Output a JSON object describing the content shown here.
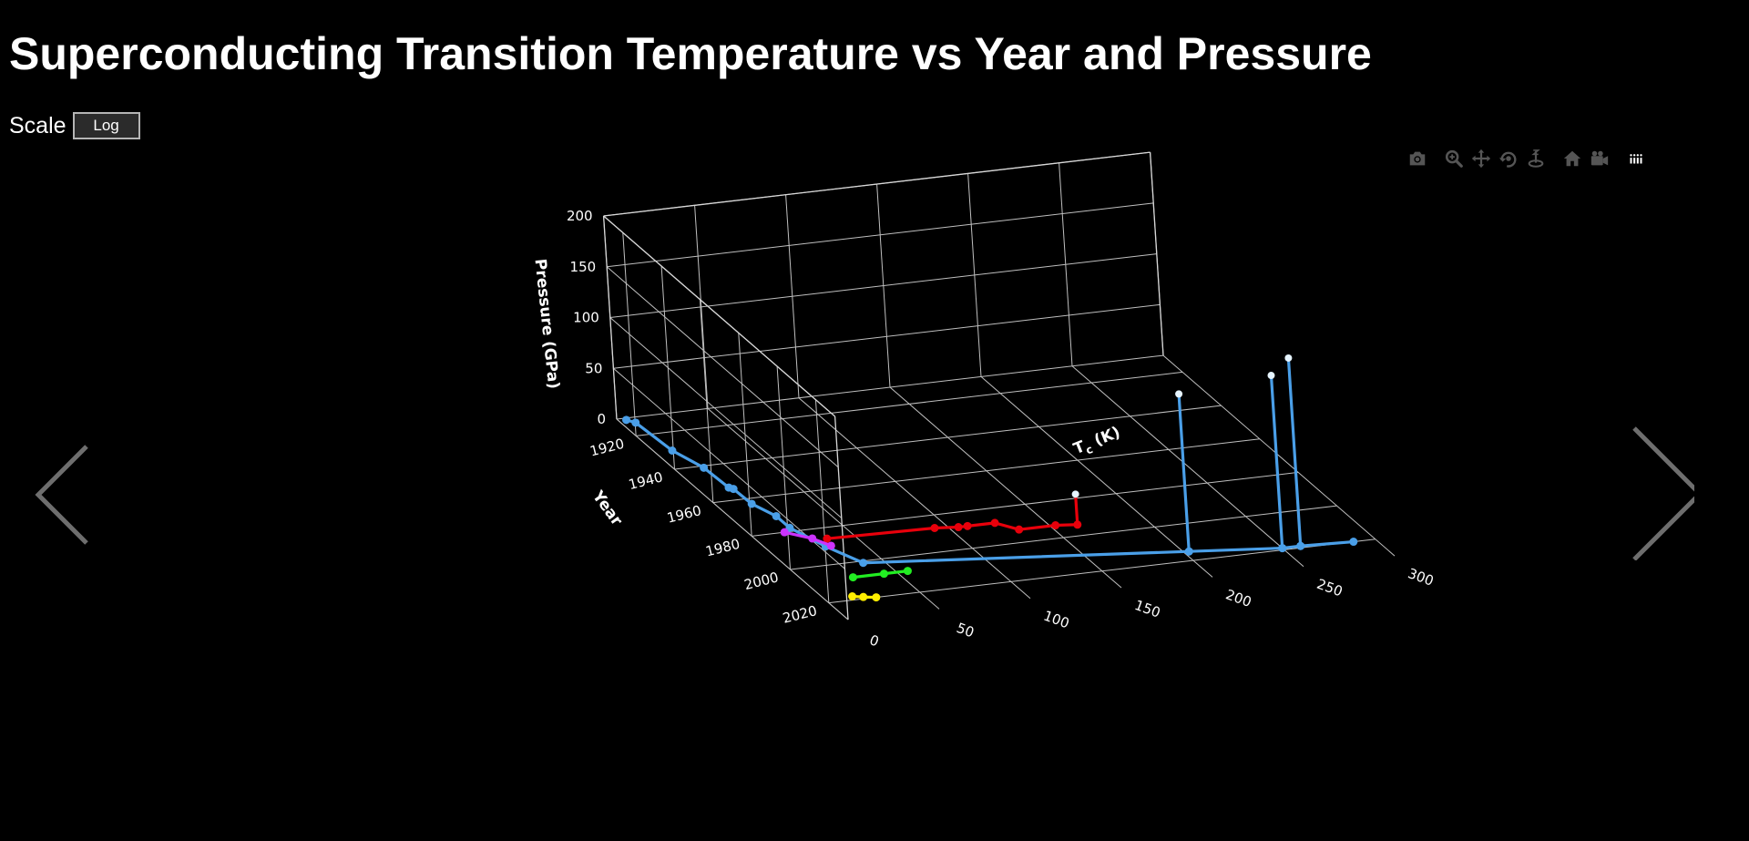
{
  "page": {
    "title": "Superconducting Transition Temperature vs Year and Pressure"
  },
  "controls": {
    "scale_label": "Scale",
    "scale_button": "Log"
  },
  "modebar": [
    "camera-icon",
    "zoom-icon",
    "pan-icon",
    "orbit-rotation-icon",
    "turntable-rotation-icon",
    "reset-camera-home-icon",
    "reset-camera-last-save-icon",
    "plotly-logo-icon"
  ],
  "navigation": {
    "prev": "chevron-left-icon",
    "next": "chevron-right-icon"
  },
  "colors": {
    "background": "#000000",
    "text": "#ffffff",
    "grid": "#bfbfbf",
    "blue_series": "#4a9fe8",
    "red_series": "#e8000b",
    "magenta_series": "#cc33ff",
    "green_series": "#22ee22",
    "yellow_series": "#ffee00"
  },
  "chart_data": {
    "type": "scatter3d",
    "title": "Superconducting Transition Temperature vs Year and Pressure",
    "axes": {
      "x": {
        "label": "Tc (K)",
        "label_main": "T",
        "label_sub": "c",
        "label_tail": " (K)",
        "range": [
          0,
          300
        ],
        "ticks": [
          0,
          50,
          100,
          150,
          200,
          250,
          300
        ]
      },
      "y": {
        "label": "Year",
        "range": [
          1910,
          2030
        ],
        "ticks": [
          1920,
          1940,
          1960,
          1980,
          2000,
          2020
        ]
      },
      "z": {
        "label": "Pressure (GPa)",
        "range": [
          0,
          200
        ],
        "ticks": [
          0,
          50,
          100,
          150,
          200
        ]
      }
    },
    "grid": true,
    "legend": "none",
    "series": [
      {
        "color": "#4a9fe8",
        "mode": "lines+markers",
        "points": [
          {
            "x": 4.2,
            "y": 1911,
            "z": 0
          },
          {
            "x": 7.2,
            "y": 1913,
            "z": 0
          },
          {
            "x": 9.3,
            "y": 1930,
            "z": 0
          },
          {
            "x": 15,
            "y": 1941,
            "z": 0
          },
          {
            "x": 16,
            "y": 1953,
            "z": 0
          },
          {
            "x": 17.5,
            "y": 1954,
            "z": 0
          },
          {
            "x": 18,
            "y": 1963,
            "z": 0
          },
          {
            "x": 23,
            "y": 1971,
            "z": 0
          },
          {
            "x": 23,
            "y": 1978,
            "z": 0
          },
          {
            "x": 30,
            "y": 1990,
            "z": 0
          },
          {
            "x": 39,
            "y": 2001,
            "z": 0
          },
          {
            "x": 203,
            "y": 2015,
            "z": 0
          },
          {
            "x": 203,
            "y": 2015,
            "z": 155
          },
          {
            "x": 203,
            "y": 2015,
            "z": 0
          },
          {
            "x": 250,
            "y": 2019,
            "z": 0
          },
          {
            "x": 250,
            "y": 2019,
            "z": 170
          },
          {
            "x": 250,
            "y": 2019,
            "z": 0
          },
          {
            "x": 260,
            "y": 2019,
            "z": 0
          },
          {
            "x": 260,
            "y": 2019,
            "z": 185
          },
          {
            "x": 260,
            "y": 2019,
            "z": 0
          },
          {
            "x": 288,
            "y": 2020,
            "z": 0
          }
        ]
      },
      {
        "color": "#e8000b",
        "mode": "lines+markers",
        "points": [
          {
            "x": 35,
            "y": 1986,
            "z": 0
          },
          {
            "x": 93,
            "y": 1987,
            "z": 0
          },
          {
            "x": 105,
            "y": 1988,
            "z": 0
          },
          {
            "x": 110,
            "y": 1988,
            "z": 0
          },
          {
            "x": 125,
            "y": 1988,
            "z": 0
          },
          {
            "x": 133,
            "y": 1993,
            "z": 0
          },
          {
            "x": 153,
            "y": 1993,
            "z": 0
          },
          {
            "x": 164,
            "y": 1994,
            "z": 0
          },
          {
            "x": 164,
            "y": 1994,
            "z": 30
          }
        ]
      },
      {
        "color": "#cc33ff",
        "mode": "lines+markers",
        "points": [
          {
            "x": 18,
            "y": 1980,
            "z": 0
          },
          {
            "x": 28,
            "y": 1985,
            "z": 0
          },
          {
            "x": 33,
            "y": 1990,
            "z": 0
          }
        ]
      },
      {
        "color": "#22ee22",
        "mode": "lines+markers",
        "points": [
          {
            "x": 26,
            "y": 2008,
            "z": 0
          },
          {
            "x": 43,
            "y": 2008,
            "z": 0
          },
          {
            "x": 56,
            "y": 2008,
            "z": 0
          }
        ]
      },
      {
        "color": "#ffee00",
        "mode": "lines+markers",
        "points": [
          {
            "x": 15,
            "y": 2018,
            "z": 0
          },
          {
            "x": 20,
            "y": 2019,
            "z": 0
          },
          {
            "x": 26,
            "y": 2020,
            "z": 0
          }
        ]
      }
    ]
  }
}
